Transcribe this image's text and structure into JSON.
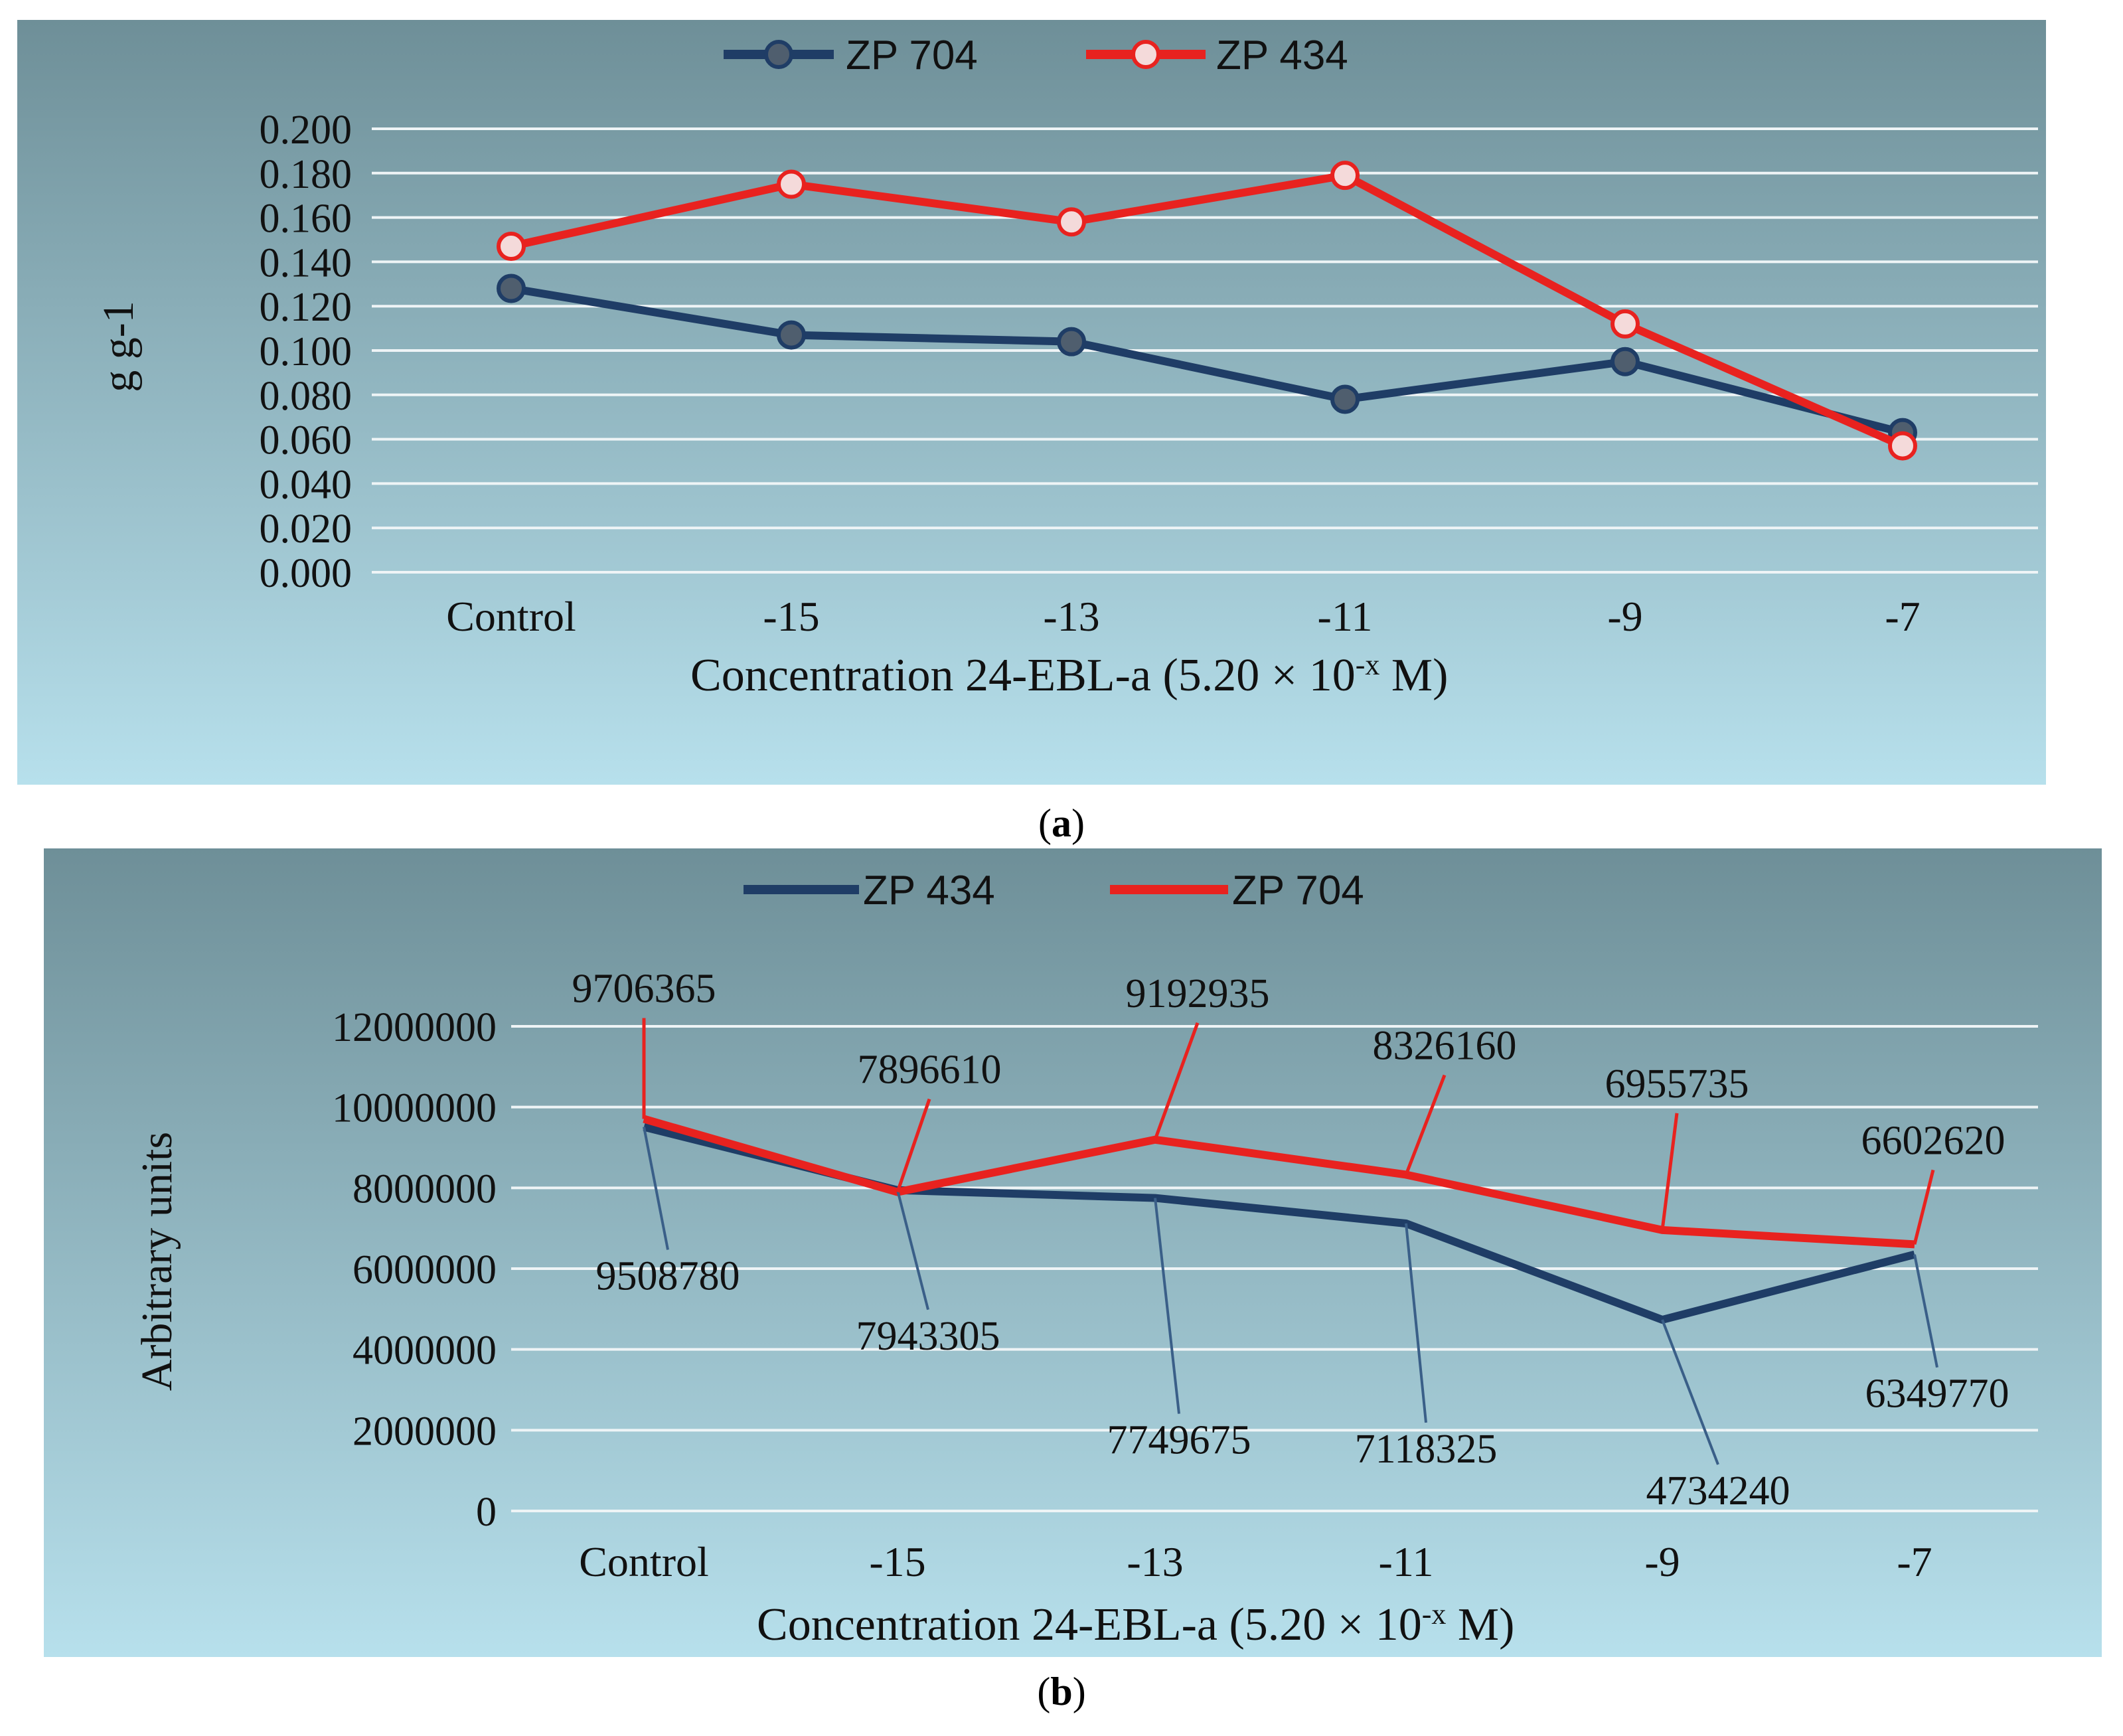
{
  "chart_data": [
    {
      "type": "line",
      "panel_label": "a",
      "categories": [
        "Control",
        "-15",
        "-13",
        "-11",
        "-9",
        "-7"
      ],
      "series": [
        {
          "name": "ZP 704",
          "color": "#1f3d66",
          "marker": "circle-filled",
          "values": [
            0.128,
            0.107,
            0.104,
            0.078,
            0.095,
            0.063
          ]
        },
        {
          "name": "ZP 434",
          "color": "#e8221f",
          "marker": "circle-open",
          "values": [
            0.147,
            0.175,
            0.158,
            0.179,
            0.112,
            0.057
          ]
        }
      ],
      "title": "",
      "xlabel_main": "Concentration 24-EBL-a  (5.20 × 10",
      "xlabel_sup": "-x",
      "xlabel_end": " M)",
      "ylabel": "g g-1",
      "ylim": [
        0,
        0.2
      ],
      "yticks": [
        "0.000",
        "0.020",
        "0.040",
        "0.060",
        "0.080",
        "0.100",
        "0.120",
        "0.140",
        "0.160",
        "0.180",
        "0.200"
      ],
      "grid": true,
      "legend": "top-center",
      "background_top": "#6e8f98",
      "background_bottom": "#b7e0ec"
    },
    {
      "type": "line",
      "panel_label": "b",
      "categories": [
        "Control",
        "-15",
        "-13",
        "-11",
        "-9",
        "-7"
      ],
      "series": [
        {
          "name": "ZP 434",
          "color": "#1f3d66",
          "values": [
            9508780,
            7943305,
            7749675,
            7118325,
            4734240,
            6349770
          ],
          "data_labels": [
            "9508780",
            "7943305",
            "7749675",
            "7118325",
            "4734240",
            "6349770"
          ]
        },
        {
          "name": "ZP 704",
          "color": "#e8221f",
          "values": [
            9706365,
            7896610,
            9192935,
            8326160,
            6955735,
            6602620
          ],
          "data_labels": [
            "9706365",
            "7896610",
            "9192935",
            "8326160",
            "6955735",
            "6602620"
          ]
        }
      ],
      "title": "",
      "xlabel_main": "Concentration 24-EBL-a  (5.20 × 10",
      "xlabel_sup": "-x",
      "xlabel_end": " M)",
      "ylabel": "Arbitrary units",
      "ylim": [
        0,
        12000000
      ],
      "yticks": [
        "0",
        "2000000",
        "4000000",
        "6000000",
        "8000000",
        "10000000",
        "12000000"
      ],
      "grid": true,
      "legend": "top-center",
      "background_top": "#6e8f98",
      "background_bottom": "#b7e0ec"
    }
  ]
}
